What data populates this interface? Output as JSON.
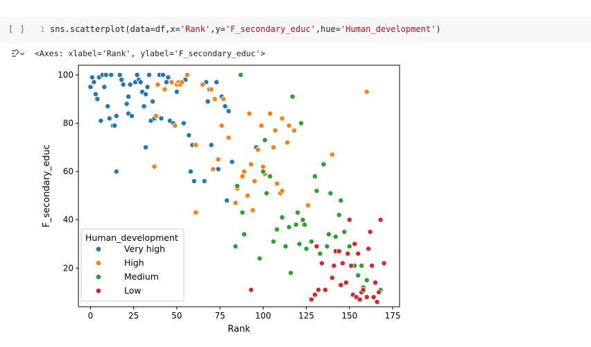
{
  "cell": {
    "run_indicator": "[ ]",
    "line_number": "1",
    "code_prefix": "sns.scatterplot(data=df,x=",
    "code_x": "'Rank'",
    "code_mid1": ",y=",
    "code_y": "'F_secondary_educ'",
    "code_mid2": ",hue=",
    "code_hue": "'Human_development'",
    "code_suffix": ")"
  },
  "output": {
    "icon": "output-toggle-icon",
    "text": "<Axes: xlabel='Rank', ylabel='F_secondary_educ'>"
  },
  "chart_data": {
    "type": "scatter",
    "title": "",
    "xlabel": "Rank",
    "ylabel": "F_secondary_educ",
    "xlim": [
      -7,
      179
    ],
    "ylim": [
      4,
      104
    ],
    "xticks": [
      0,
      25,
      50,
      75,
      100,
      125,
      150,
      175
    ],
    "yticks": [
      20,
      40,
      60,
      80,
      100
    ],
    "grid": false,
    "legend": {
      "title": "Human_development",
      "placement": "lower-left"
    },
    "series": [
      {
        "name": "Very high",
        "color": "#1f77b4",
        "points": [
          [
            0,
            95
          ],
          [
            1,
            99
          ],
          [
            2,
            97
          ],
          [
            3,
            92
          ],
          [
            4,
            90
          ],
          [
            5,
            99
          ],
          [
            6,
            81
          ],
          [
            7,
            100
          ],
          [
            8,
            95
          ],
          [
            9,
            100
          ],
          [
            10,
            87
          ],
          [
            11,
            82
          ],
          [
            12,
            100
          ],
          [
            13,
            79
          ],
          [
            14,
            79
          ],
          [
            15,
            60
          ],
          [
            15,
            83
          ],
          [
            17,
            100
          ],
          [
            18,
            98
          ],
          [
            19,
            96
          ],
          [
            21,
            88
          ],
          [
            22,
            84
          ],
          [
            22,
            91
          ],
          [
            23,
            96
          ],
          [
            24,
            83
          ],
          [
            26,
            97
          ],
          [
            27,
            100
          ],
          [
            28,
            98
          ],
          [
            29,
            97
          ],
          [
            30,
            93
          ],
          [
            31,
            87
          ],
          [
            32,
            70
          ],
          [
            32,
            92
          ],
          [
            33,
            95
          ],
          [
            34,
            100
          ],
          [
            35,
            81
          ],
          [
            36,
            89
          ],
          [
            37,
            82
          ],
          [
            40,
            100
          ],
          [
            41,
            82
          ],
          [
            42,
            100
          ],
          [
            44,
            97
          ],
          [
            45,
            99
          ],
          [
            46,
            81
          ],
          [
            48,
            80
          ],
          [
            50,
            93
          ],
          [
            54,
            80
          ],
          [
            55,
            98
          ],
          [
            57,
            75
          ],
          [
            58,
            60
          ],
          [
            59,
            71
          ],
          [
            60,
            56
          ],
          [
            66,
            56
          ],
          [
            67,
            97
          ],
          [
            68,
            89
          ],
          [
            69,
            94
          ],
          [
            70,
            71
          ],
          [
            73,
            97
          ],
          [
            74,
            61
          ],
          [
            76,
            91
          ],
          [
            78,
            87
          ],
          [
            80,
            85
          ],
          [
            82,
            64
          ],
          [
            79,
            48
          ],
          [
            96,
            70
          ]
        ]
      },
      {
        "name": "High",
        "color": "#ff7f0e",
        "points": [
          [
            37,
            62
          ],
          [
            38,
            83
          ],
          [
            39,
            96
          ],
          [
            43,
            94
          ],
          [
            47,
            97
          ],
          [
            49,
            79
          ],
          [
            50,
            96
          ],
          [
            51,
            97
          ],
          [
            52,
            96
          ],
          [
            53,
            97
          ],
          [
            56,
            100
          ],
          [
            61,
            71
          ],
          [
            61,
            43
          ],
          [
            65,
            96
          ],
          [
            70,
            94
          ],
          [
            71,
            61
          ],
          [
            72,
            90
          ],
          [
            74,
            65
          ],
          [
            76,
            79
          ],
          [
            77,
            90
          ],
          [
            80,
            74
          ],
          [
            84,
            47
          ],
          [
            85,
            53
          ],
          [
            88,
            58
          ],
          [
            89,
            60
          ],
          [
            91,
            50
          ],
          [
            92,
            84
          ],
          [
            93,
            63
          ],
          [
            94,
            44
          ],
          [
            95,
            56
          ],
          [
            97,
            69
          ],
          [
            99,
            79
          ],
          [
            100,
            62
          ],
          [
            101,
            59
          ],
          [
            104,
            84
          ],
          [
            106,
            70
          ],
          [
            107,
            77
          ],
          [
            108,
            55
          ],
          [
            110,
            51
          ],
          [
            111,
            52
          ],
          [
            111,
            82
          ],
          [
            114,
            72
          ],
          [
            115,
            79
          ],
          [
            118,
            77
          ],
          [
            126,
            46
          ],
          [
            140,
            67
          ],
          [
            160,
            93
          ]
        ]
      },
      {
        "name": "Medium",
        "color": "#2ca02c",
        "points": [
          [
            84,
            29
          ],
          [
            85,
            54
          ],
          [
            87,
            100
          ],
          [
            88,
            43
          ],
          [
            89,
            34
          ],
          [
            98,
            24
          ],
          [
            100,
            60
          ],
          [
            101,
            73
          ],
          [
            102,
            51
          ],
          [
            104,
            58
          ],
          [
            106,
            31
          ],
          [
            108,
            36
          ],
          [
            111,
            41
          ],
          [
            113,
            29
          ],
          [
            115,
            37
          ],
          [
            116,
            18
          ],
          [
            117,
            91
          ],
          [
            119,
            38
          ],
          [
            120,
            43
          ],
          [
            121,
            30
          ],
          [
            122,
            80
          ],
          [
            123,
            40
          ],
          [
            124,
            38
          ],
          [
            125,
            28
          ],
          [
            128,
            31
          ],
          [
            130,
            58
          ],
          [
            131,
            52
          ],
          [
            133,
            26
          ],
          [
            135,
            63
          ],
          [
            137,
            29
          ],
          [
            138,
            34
          ],
          [
            139,
            51
          ],
          [
            142,
            33
          ],
          [
            144,
            42
          ],
          [
            145,
            48
          ],
          [
            147,
            35
          ],
          [
            150,
            29
          ],
          [
            153,
            21
          ],
          [
            155,
            17
          ],
          [
            157,
            21
          ],
          [
            158,
            12
          ],
          [
            160,
            15
          ],
          [
            168,
            11
          ]
        ]
      },
      {
        "name": "Low",
        "color": "#d62728",
        "points": [
          [
            93,
            11
          ],
          [
            128,
            7
          ],
          [
            130,
            9
          ],
          [
            131,
            29
          ],
          [
            132,
            11
          ],
          [
            134,
            22
          ],
          [
            136,
            11
          ],
          [
            140,
            16
          ],
          [
            141,
            21
          ],
          [
            142,
            27
          ],
          [
            144,
            27
          ],
          [
            145,
            13
          ],
          [
            146,
            22
          ],
          [
            148,
            14
          ],
          [
            149,
            26
          ],
          [
            150,
            40
          ],
          [
            151,
            21
          ],
          [
            152,
            9
          ],
          [
            153,
            30
          ],
          [
            154,
            8
          ],
          [
            155,
            26
          ],
          [
            156,
            7
          ],
          [
            157,
            10
          ],
          [
            158,
            11
          ],
          [
            160,
            8
          ],
          [
            161,
            28
          ],
          [
            162,
            35
          ],
          [
            163,
            21
          ],
          [
            164,
            8
          ],
          [
            165,
            14
          ],
          [
            166,
            6
          ],
          [
            167,
            10
          ],
          [
            168,
            40
          ],
          [
            170,
            22
          ]
        ]
      }
    ]
  }
}
